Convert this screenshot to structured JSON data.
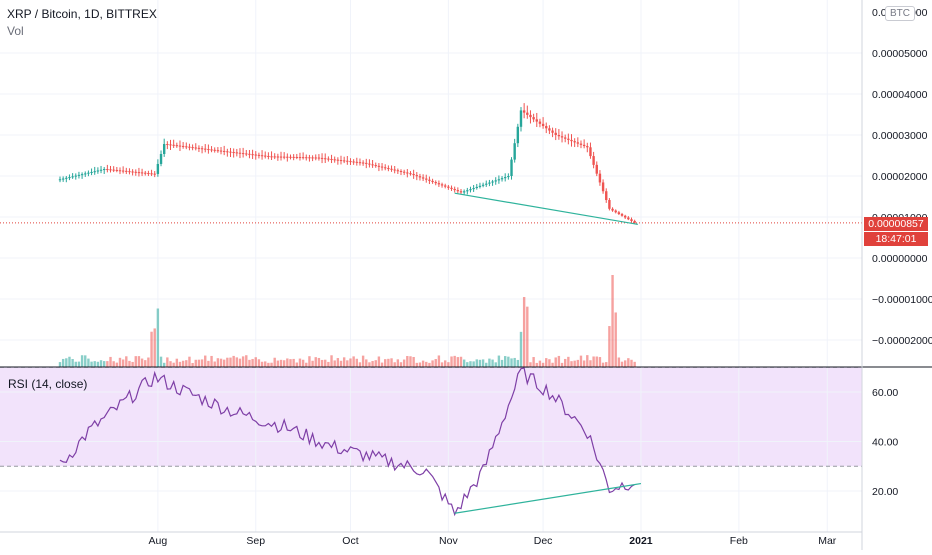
{
  "header": {
    "symbol_line": "XRP / Bitcoin, 1D, BITTREX",
    "vol_label": "Vol",
    "rsi_label": "RSI (14, close)",
    "currency_badge": "BTC"
  },
  "price_axis": {
    "ticks": [
      "0.00006000",
      "0.00005000",
      "0.00004000",
      "0.00003000",
      "0.00002000",
      "0.00001000",
      "0.00000000",
      "−0.00001000",
      "−0.00002000"
    ],
    "last_price": "0.00000857",
    "countdown": "18:47:01"
  },
  "rsi_axis": {
    "ticks": [
      "60.00",
      "40.00",
      "20.00"
    ]
  },
  "time_axis": {
    "labels": [
      "Aug",
      "Sep",
      "Oct",
      "Nov",
      "Dec",
      "2021",
      "Feb",
      "Mar"
    ]
  },
  "colors": {
    "up": "#26a69a",
    "down": "#ef5350",
    "rsi_line": "#7e3fa6",
    "rsi_band": "#f2e3fb",
    "trendline": "#2fb39c",
    "last_price": "#e0413b"
  },
  "chart_data": {
    "type": "line",
    "title": "XRP / Bitcoin, 1D, BITTREX",
    "price_series": {
      "name": "XRP / Bitcoin",
      "x": [
        "2020-07-01",
        "2020-07-15",
        "2020-07-31",
        "2020-08-03",
        "2020-08-20",
        "2020-09-05",
        "2020-09-20",
        "2020-10-05",
        "2020-10-20",
        "2020-11-05",
        "2020-11-20",
        "2020-11-24",
        "2020-12-05",
        "2020-12-15",
        "2020-12-22",
        "2020-12-30"
      ],
      "y": [
        1.92e-05,
        2.17e-05,
        2.05e-05,
        2.78e-05,
        2.62e-05,
        2.48e-05,
        2.45e-05,
        2.32e-05,
        2.05e-05,
        1.6e-05,
        2e-05,
        3.6e-05,
        3e-05,
        2.7e-05,
        1.2e-05,
        8.6e-06
      ]
    },
    "rsi_series": {
      "name": "RSI (14, close)",
      "x": [
        "2020-07-01",
        "2020-07-10",
        "2020-07-31",
        "2020-08-10",
        "2020-08-25",
        "2020-09-10",
        "2020-09-25",
        "2020-10-10",
        "2020-10-25",
        "2020-11-03",
        "2020-11-12",
        "2020-11-24",
        "2020-12-03",
        "2020-12-15",
        "2020-12-22",
        "2020-12-30"
      ],
      "y": [
        30,
        44,
        66,
        60,
        52,
        46,
        38,
        33,
        28,
        11,
        28,
        68,
        60,
        44,
        21,
        24
      ]
    },
    "rsi_levels": [
      30,
      70
    ],
    "ylim_price": [
      -2.5e-05,
      6e-05
    ],
    "ylim_rsi": [
      5,
      70
    ],
    "xlim": [
      "2020-06-12",
      "2021-03-12"
    ],
    "trendlines": [
      {
        "pane": "price",
        "from": [
          "2020-11-03",
          1.58e-05
        ],
        "to": [
          "2020-12-31",
          8.2e-06
        ]
      },
      {
        "pane": "rsi",
        "from": [
          "2020-11-03",
          11
        ],
        "to": [
          "2021-01-01",
          23
        ]
      }
    ],
    "grid": true
  }
}
